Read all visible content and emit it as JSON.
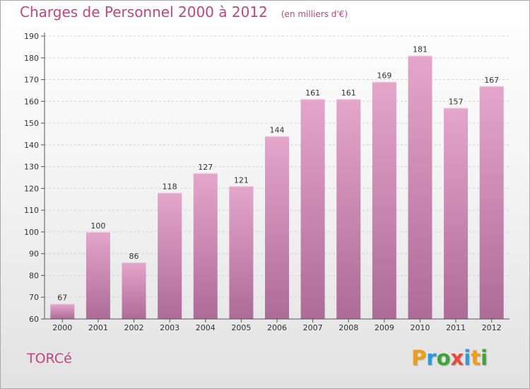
{
  "chart_data": {
    "type": "bar",
    "title": "Charges de Personnel 2000 à 2012",
    "subtitle": "(en milliers d'€)",
    "categories": [
      "2000",
      "2001",
      "2002",
      "2003",
      "2004",
      "2005",
      "2006",
      "2007",
      "2008",
      "2009",
      "2010",
      "2011",
      "2012"
    ],
    "values": [
      67,
      100,
      86,
      118,
      127,
      121,
      144,
      161,
      161,
      169,
      181,
      157,
      167
    ],
    "ylim": [
      60,
      190
    ],
    "yticks": [
      60,
      70,
      80,
      90,
      100,
      110,
      120,
      130,
      140,
      150,
      160,
      170,
      180,
      190
    ],
    "grid": true,
    "bar_color": "#c26a9c"
  },
  "footer": {
    "city": "TORCé",
    "logo": "Proxiti"
  },
  "logo_colors": [
    "#f39c12",
    "#2e9ad6",
    "#3aa63a",
    "#e94a3c",
    "#2e9ad6",
    "#f39c12",
    "#3aa63a"
  ]
}
